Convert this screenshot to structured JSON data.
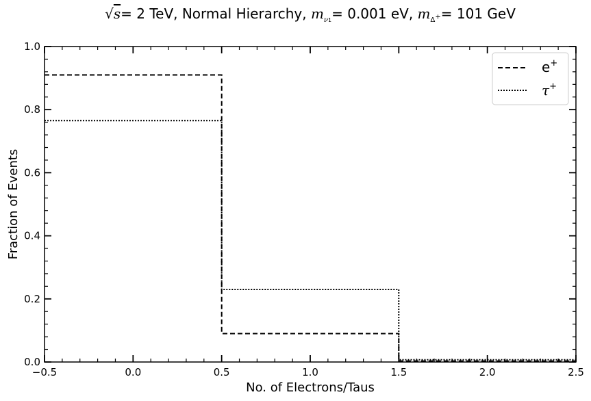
{
  "chart_data": {
    "type": "step-histogram",
    "title": "√s = 2 TeV, Normal Hierarchy, m_ν1 = 0.001 eV, m_Δ+ = 101 GeV",
    "xlabel": "No. of Electrons/Taus",
    "ylabel": "Fraction of Events",
    "xlim": [
      -0.5,
      2.5
    ],
    "ylim": [
      0.0,
      1.0
    ],
    "bin_edges": [
      -0.5,
      0.5,
      1.5,
      2.5
    ],
    "x_ticks": [
      -0.5,
      0.0,
      0.5,
      1.0,
      1.5,
      2.0,
      2.5
    ],
    "x_tick_labels": [
      "−0.5",
      "0.0",
      "0.5",
      "1.0",
      "1.5",
      "2.0",
      "2.5"
    ],
    "y_ticks": [
      0.0,
      0.2,
      0.4,
      0.6,
      0.8,
      1.0
    ],
    "y_tick_labels": [
      "0.0",
      "0.2",
      "0.4",
      "0.6",
      "0.8",
      "1.0"
    ],
    "legend_position": "top-right",
    "grid": false,
    "series": [
      {
        "name": "e⁺",
        "name_base": "e",
        "name_sup": "+",
        "line_style": "dashed",
        "color": "#000000",
        "values": [
          0.91,
          0.09,
          0.003
        ]
      },
      {
        "name": "τ⁺",
        "name_base": "τ",
        "name_sup": "+",
        "line_style": "dotted",
        "color": "#000000",
        "values": [
          0.765,
          0.23,
          0.007
        ]
      }
    ]
  },
  "title_parts": {
    "sqrt_symbol": "√",
    "s": "s",
    "t1": "= 2 TeV, Normal Hierarchy, ",
    "m": "m",
    "sub_nu": "ν",
    "sub_nu_index": "1",
    "t2": "= 0.001 eV, ",
    "sub_delta": "Δ",
    "sup_plus": "+",
    "t3": "= 101 GeV"
  }
}
